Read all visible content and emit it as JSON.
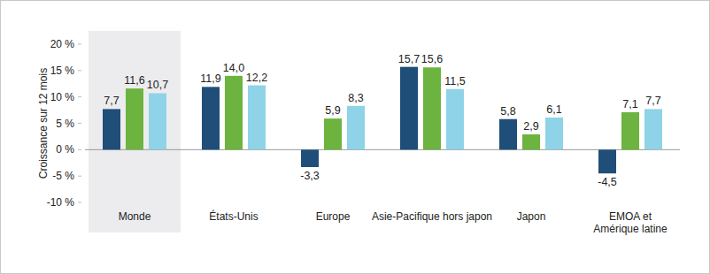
{
  "chart_data": {
    "type": "bar",
    "y_label": "Croissance sur 12 mois",
    "categories": [
      "Monde",
      "États-Unis",
      "Europe",
      "Asie-Pacifique hors japon",
      "Japon",
      "EMOA et Amérique latine"
    ],
    "series": [
      {
        "color": "#1f4e79",
        "values": [
          7.7,
          11.9,
          -3.3,
          15.7,
          5.8,
          -4.5
        ],
        "value_labels": [
          "7,7",
          "11,9",
          "-3,3",
          "15,7",
          "5,8",
          "-4,5"
        ]
      },
      {
        "color": "#6cb33f",
        "values": [
          11.6,
          14.0,
          5.9,
          15.6,
          2.9,
          7.1
        ],
        "value_labels": [
          "11,6",
          "14,0",
          "5,9",
          "15,6",
          "2,9",
          "7,1"
        ]
      },
      {
        "color": "#8fd3e8",
        "values": [
          10.7,
          12.2,
          8.3,
          11.5,
          6.1,
          7.7
        ],
        "value_labels": [
          "10,7",
          "12,2",
          "8,3",
          "11,5",
          "6,1",
          "7,7"
        ]
      }
    ],
    "ylim": [
      -10,
      20
    ],
    "yticks": [
      {
        "value": -10,
        "label": "-10 %"
      },
      {
        "value": -5,
        "label": "-5 %"
      },
      {
        "value": 0,
        "label": "0 %"
      },
      {
        "value": 5,
        "label": "5 %"
      },
      {
        "value": 10,
        "label": "10 %"
      },
      {
        "value": 15,
        "label": "15 %"
      },
      {
        "value": 20,
        "label": "20 %"
      }
    ],
    "grid": false,
    "data_labels": true
  }
}
